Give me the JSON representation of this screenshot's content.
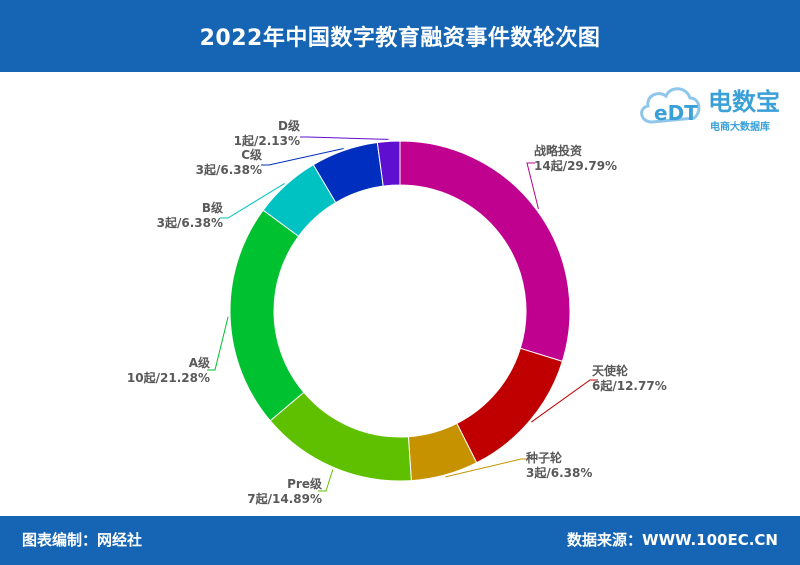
{
  "header": {
    "title": "2022年中国数字教育融资事件数轮次图"
  },
  "footer": {
    "credit": "图表编制：网经社",
    "source": "数据来源：WWW.100EC.CN"
  },
  "logo": {
    "mark": "eDT",
    "name": "电数宝",
    "tagline": "电商大数据库"
  },
  "colors": {
    "header_bg": "#1565b4",
    "战略投资": "#c0008e",
    "天使轮": "#c00000",
    "种子轮": "#c69200",
    "Pre级": "#5fc000",
    "A级": "#00c130",
    "B级": "#00c2c2",
    "C级": "#002fbf",
    "D级": "#5e0fcf"
  },
  "chart_data": {
    "type": "pie",
    "style": "donut",
    "title": "2022年中国数字教育融资事件数轮次图",
    "unit": "起",
    "slices": [
      {
        "name": "战略投资",
        "count": 14,
        "percent": 29.79,
        "label": "14起/29.79%",
        "color": "#c0008e"
      },
      {
        "name": "天使轮",
        "count": 6,
        "percent": 12.77,
        "label": "6起/12.77%",
        "color": "#c00000"
      },
      {
        "name": "种子轮",
        "count": 3,
        "percent": 6.38,
        "label": "3起/6.38%",
        "color": "#c69200"
      },
      {
        "name": "Pre级",
        "count": 7,
        "percent": 14.89,
        "label": "7起/14.89%",
        "color": "#5fc000"
      },
      {
        "name": "A级",
        "count": 10,
        "percent": 21.28,
        "label": "10起/21.28%",
        "color": "#00c130"
      },
      {
        "name": "B级",
        "count": 3,
        "percent": 6.38,
        "label": "3起/6.38%",
        "color": "#00c2c2"
      },
      {
        "name": "C级",
        "count": 3,
        "percent": 6.38,
        "label": "3起/6.38%",
        "color": "#002fbf"
      },
      {
        "name": "D级",
        "count": 1,
        "percent": 2.13,
        "label": "1起/2.13%",
        "color": "#5e0fcf"
      }
    ]
  }
}
